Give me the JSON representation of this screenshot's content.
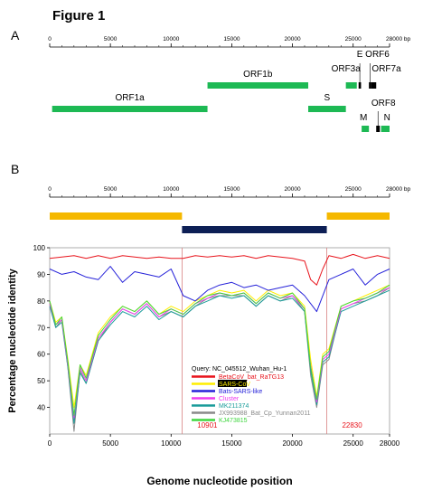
{
  "figure": {
    "title": "Figure 1",
    "panel_a_label": "A",
    "panel_b_label": "B"
  },
  "colors": {
    "green": "#1db954",
    "gold": "#f5b800",
    "navy": "#0d1f55",
    "grid": "#cfcfcf",
    "divider": "#d98080"
  },
  "chart_data": [
    {
      "type": "genome_map",
      "panel": "A",
      "axis_unit": "bp",
      "xlim": [
        0,
        28000
      ],
      "ticks": [
        0,
        5000,
        10000,
        15000,
        20000,
        25000
      ],
      "tick_labels": [
        "0",
        "5000",
        "10000",
        "15000",
        "20000",
        "25000"
      ],
      "end_tick_label": "28000 bp",
      "genes": [
        {
          "name": "ORF1a",
          "start": 200,
          "end": 13000,
          "row": 3
        },
        {
          "name": "ORF1b",
          "start": 13000,
          "end": 21300,
          "row": 1
        },
        {
          "name": "S",
          "start": 21300,
          "end": 24400,
          "row": 3
        },
        {
          "name": "ORF3a",
          "start": 24400,
          "end": 25300,
          "row": 1
        },
        {
          "name": "E",
          "start": 25450,
          "end": 25650,
          "row": 1
        },
        {
          "name": "ORF6",
          "start": 26300,
          "end": 26500,
          "row": 1
        },
        {
          "name": "ORF7a",
          "start": 26500,
          "end": 26900,
          "row": 1
        },
        {
          "name": "M",
          "start": 25700,
          "end": 26300,
          "row": 4
        },
        {
          "name": "ORF8",
          "start": 26900,
          "end": 27200,
          "row": 4
        },
        {
          "name": "N",
          "start": 27300,
          "end": 28000,
          "row": 4
        }
      ]
    },
    {
      "type": "line",
      "panel": "B",
      "xlabel": "Genome nucleotide position",
      "ylabel": "Percentage nucleotide identity",
      "xlim": [
        0,
        28000
      ],
      "ylim": [
        30,
        100
      ],
      "xticks": [
        0,
        5000,
        10000,
        15000,
        20000,
        25000,
        28000
      ],
      "yticks": [
        40,
        50,
        60,
        70,
        80,
        90,
        100
      ],
      "top_ticks": [
        0,
        5000,
        10000,
        15000,
        20000,
        25000
      ],
      "top_end_label": "28000 bp",
      "regions": [
        {
          "start": 0,
          "end": 10901,
          "color": "gold"
        },
        {
          "start": 10901,
          "end": 22830,
          "color": "navy"
        },
        {
          "start": 22830,
          "end": 28000,
          "color": "gold"
        }
      ],
      "breakpoints": [
        10901,
        22830
      ],
      "breakpoint_labels": [
        "10901",
        "22830"
      ],
      "legend_title": "Query: NC_045512_Wuhan_Hu-1",
      "legend_placement": "lower-center",
      "series": [
        {
          "name": "BetaCoV_bat_RaTG13",
          "color": "#e8141c",
          "x": [
            0,
            1000,
            2000,
            3000,
            4000,
            5000,
            6000,
            7000,
            8000,
            9000,
            10000,
            11000,
            12000,
            13000,
            14000,
            15000,
            16000,
            17000,
            18000,
            19000,
            20000,
            21000,
            21500,
            22000,
            22500,
            23000,
            24000,
            25000,
            26000,
            27000,
            28000
          ],
          "y": [
            96,
            96.5,
            97,
            96,
            97,
            96,
            97,
            96.5,
            96,
            96.5,
            96,
            96,
            97,
            96.5,
            97,
            96.5,
            97,
            96,
            97,
            96.5,
            96,
            95,
            88,
            86,
            92,
            97,
            96,
            97.5,
            96,
            97,
            96
          ]
        },
        {
          "name": "SARS-CoV",
          "color": "#ffee00",
          "x": [
            0,
            500,
            1000,
            1500,
            2000,
            2500,
            3000,
            4000,
            5000,
            6000,
            7000,
            8000,
            9000,
            10000,
            11000,
            12000,
            13000,
            14000,
            15000,
            16000,
            17000,
            18000,
            19000,
            20000,
            21000,
            21500,
            22000,
            22500,
            23000,
            24000,
            25000,
            26000,
            27000,
            28000
          ],
          "y": [
            80,
            72,
            74,
            58,
            40,
            56,
            52,
            68,
            74,
            78,
            76,
            80,
            75,
            78,
            76,
            80,
            82,
            84,
            83,
            84,
            80,
            84,
            82,
            83,
            78,
            58,
            44,
            60,
            62,
            78,
            80,
            82,
            84,
            86
          ]
        },
        {
          "name": "Bats-SARS-like",
          "color": "#2622d9",
          "x": [
            0,
            1000,
            2000,
            3000,
            4000,
            5000,
            6000,
            7000,
            8000,
            9000,
            10000,
            11000,
            12000,
            13000,
            14000,
            15000,
            16000,
            17000,
            18000,
            19000,
            20000,
            21000,
            22000,
            23000,
            24000,
            25000,
            26000,
            27000,
            28000
          ],
          "y": [
            92,
            90,
            91,
            89,
            88,
            93,
            87,
            91,
            90,
            89,
            92,
            82,
            80,
            84,
            86,
            87,
            85,
            86,
            84,
            85,
            86,
            82,
            76,
            88,
            90,
            92,
            86,
            90,
            92
          ]
        },
        {
          "name": "Cluster",
          "color": "#ee3bee",
          "x": [
            0,
            500,
            1000,
            1500,
            2000,
            2500,
            3000,
            4000,
            5000,
            6000,
            7000,
            8000,
            9000,
            10000,
            11000,
            12000,
            13000,
            14000,
            15000,
            16000,
            17000,
            18000,
            19000,
            20000,
            21000,
            21500,
            22000,
            22500,
            23000,
            24000,
            25000,
            26000,
            27000,
            28000
          ],
          "y": [
            79,
            71,
            73,
            56,
            36,
            55,
            50,
            66,
            72,
            77,
            75,
            79,
            74,
            77,
            75,
            79,
            81,
            83,
            82,
            83,
            79,
            83,
            81,
            82,
            77,
            56,
            42,
            58,
            60,
            77,
            79,
            81,
            83,
            85
          ]
        },
        {
          "name": "MK211374",
          "color": "#1a9c9a",
          "x": [
            0,
            500,
            1000,
            1500,
            2000,
            2500,
            3000,
            4000,
            5000,
            6000,
            7000,
            8000,
            9000,
            10000,
            11000,
            12000,
            13000,
            14000,
            15000,
            16000,
            17000,
            18000,
            19000,
            20000,
            21000,
            21500,
            22000,
            22500,
            23000,
            24000,
            25000,
            26000,
            27000,
            28000
          ],
          "y": [
            78,
            70,
            72,
            55,
            34,
            53,
            49,
            65,
            71,
            76,
            74,
            78,
            73,
            76,
            74,
            78,
            80,
            82,
            81,
            82,
            78,
            82,
            80,
            81,
            76,
            54,
            41,
            57,
            59,
            76,
            78,
            80,
            82,
            84
          ]
        },
        {
          "name": "JX993988_Bat_Cp_Yunnan2011",
          "color": "#8a8a8a",
          "x": [
            0,
            500,
            1000,
            1500,
            2000,
            2500,
            3000,
            4000,
            5000,
            6000,
            7000,
            8000,
            9000,
            10000,
            11000,
            12000,
            13000,
            14000,
            15000,
            16000,
            17000,
            18000,
            19000,
            20000,
            21000,
            21500,
            22000,
            22500,
            23000,
            24000,
            25000,
            26000,
            27000,
            28000
          ],
          "y": [
            79,
            70,
            73,
            55,
            31,
            54,
            49,
            65,
            72,
            77,
            75,
            79,
            74,
            76,
            74,
            78,
            81,
            82,
            82,
            82,
            78,
            82,
            80,
            82,
            76,
            52,
            40,
            56,
            58,
            77,
            79,
            80,
            82,
            85
          ]
        },
        {
          "name": "KJ473815",
          "color": "#3ed63e",
          "x": [
            0,
            500,
            1000,
            1500,
            2000,
            2500,
            3000,
            4000,
            5000,
            6000,
            7000,
            8000,
            9000,
            10000,
            11000,
            12000,
            13000,
            14000,
            15000,
            16000,
            17000,
            18000,
            19000,
            20000,
            21000,
            21500,
            22000,
            22500,
            23000,
            24000,
            25000,
            26000,
            27000,
            28000
          ],
          "y": [
            80,
            71,
            74,
            57,
            37,
            56,
            51,
            67,
            73,
            78,
            76,
            80,
            75,
            77,
            75,
            79,
            82,
            83,
            82,
            83,
            79,
            83,
            81,
            83,
            77,
            55,
            43,
            59,
            61,
            78,
            80,
            81,
            83,
            86
          ]
        }
      ]
    }
  ]
}
